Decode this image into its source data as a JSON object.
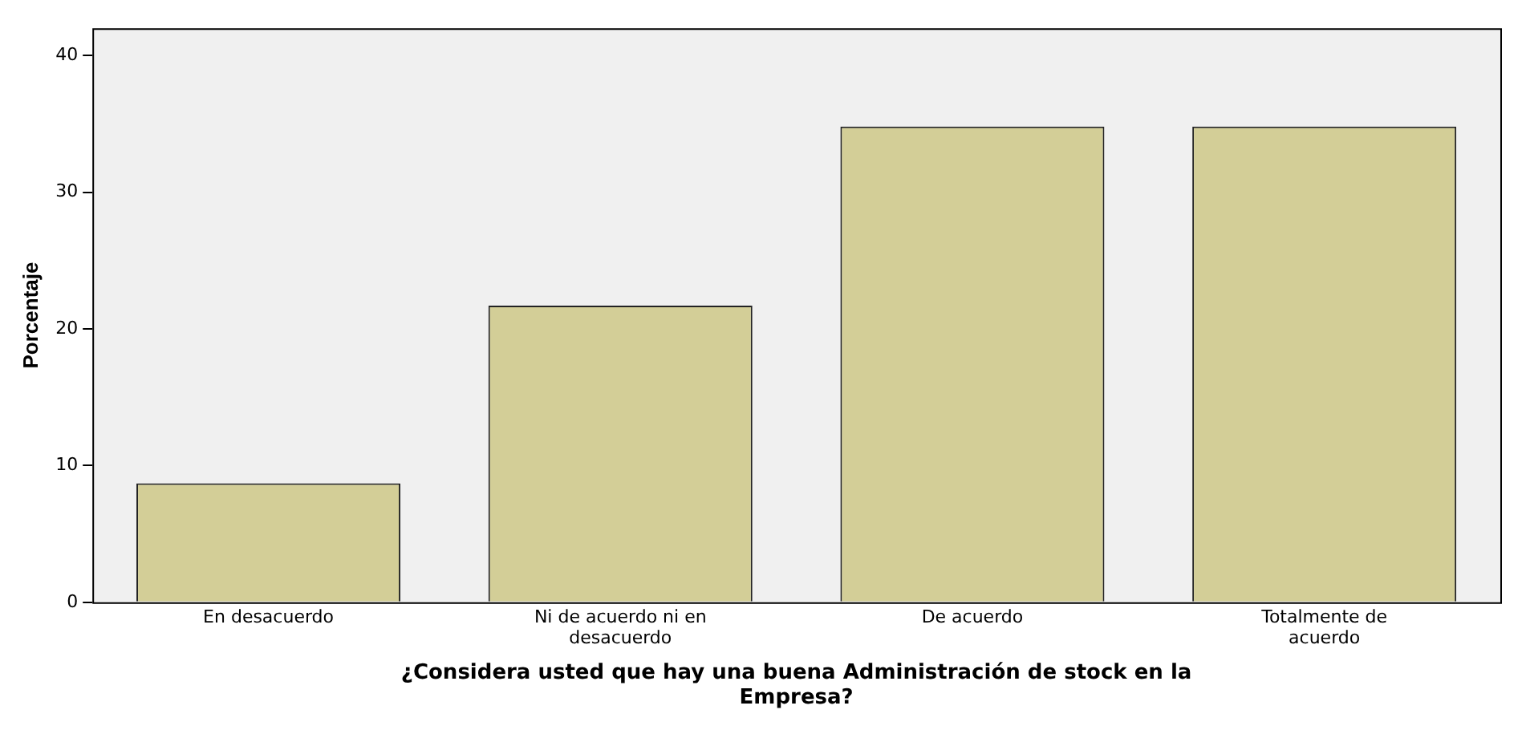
{
  "chart_data": {
    "type": "bar",
    "xlabel": "¿Considera usted que hay una buena Administración de stock en la Empresa?",
    "ylabel": "Porcentaje",
    "categories": [
      "En desacuerdo",
      "Ni de acuerdo ni en desacuerdo",
      "De acuerdo",
      "Totalmente de acuerdo"
    ],
    "values": [
      8.7,
      21.7,
      34.8,
      34.8
    ],
    "color": "#d3ce97",
    "ylim": [
      0,
      42
    ],
    "yticks": [
      0,
      10,
      20,
      30,
      40
    ],
    "grid": false,
    "legend": false
  }
}
